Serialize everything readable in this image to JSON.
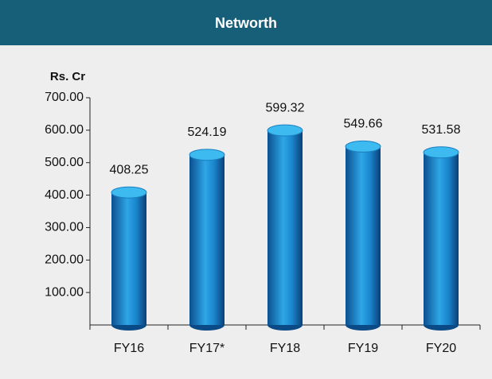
{
  "chart_data": {
    "type": "bar",
    "title": "Networth",
    "ylabel": "Rs. Cr",
    "categories": [
      "FY16",
      "FY17*",
      "FY18",
      "FY19",
      "FY20"
    ],
    "values": [
      408.25,
      524.19,
      599.32,
      549.66,
      531.58
    ],
    "color": "#1a8fd6",
    "ylim": [
      0,
      700
    ],
    "yticks": [
      {
        "value": 100,
        "label": "100.00"
      },
      {
        "value": 200,
        "label": "200.00"
      },
      {
        "value": 300,
        "label": "300.00"
      },
      {
        "value": 400,
        "label": "400.00"
      },
      {
        "value": 500,
        "label": "500.00"
      },
      {
        "value": 600,
        "label": "600.00"
      },
      {
        "value": 700,
        "label": "700.00"
      }
    ],
    "grid": false
  }
}
